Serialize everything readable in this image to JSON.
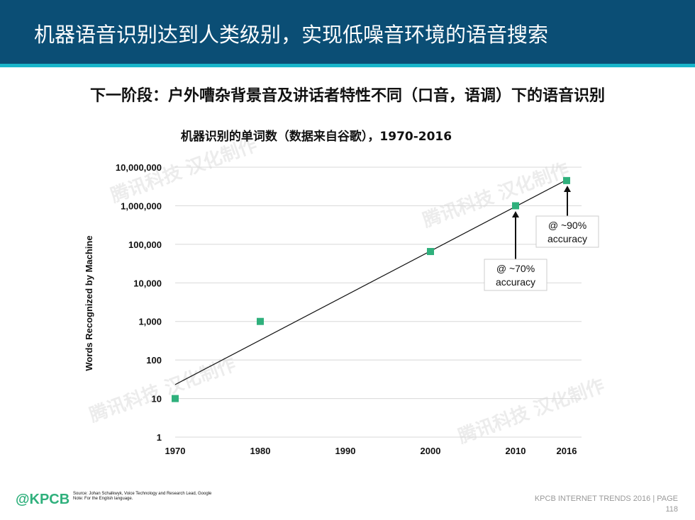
{
  "header": {
    "title": "机器语音识别达到人类级别，实现低噪音环境的语音搜索"
  },
  "subtitle": "下一阶段：户外嘈杂背景音及讲话者特性不同（口音，语调）下的语音识别",
  "watermark": "腾讯科技 汉化制作",
  "chart_data": {
    "type": "scatter",
    "title": "机器识别的单词数（数据来自谷歌），1970-2016",
    "xlabel": "",
    "ylabel": "Words Recognized by Machine",
    "yscale": "log",
    "ylim": [
      1,
      10000000
    ],
    "y_ticks": [
      {
        "v": 1,
        "label": "1"
      },
      {
        "v": 10,
        "label": "10"
      },
      {
        "v": 100,
        "label": "100"
      },
      {
        "v": 1000,
        "label": "1,000"
      },
      {
        "v": 10000,
        "label": "10,000"
      },
      {
        "v": 100000,
        "label": "100,000"
      },
      {
        "v": 1000000,
        "label": "1,000,000"
      },
      {
        "v": 10000000,
        "label": "10,000,000"
      }
    ],
    "x_ticks": [
      1970,
      1980,
      1990,
      2000,
      2010,
      2016
    ],
    "xlim": [
      1970,
      2016
    ],
    "points": [
      {
        "x": 1970,
        "y": 10
      },
      {
        "x": 1980,
        "y": 1000
      },
      {
        "x": 2000,
        "y": 65000
      },
      {
        "x": 2010,
        "y": 1000000
      },
      {
        "x": 2016,
        "y": 4500000
      }
    ],
    "trendline": [
      {
        "x": 1970,
        "y": 23
      },
      {
        "x": 2016,
        "y": 4700000
      }
    ],
    "point_color": "#2fb07c",
    "annotations": [
      {
        "x": 2010,
        "line1": "@ ~70%",
        "line2": "accuracy"
      },
      {
        "x": 2016,
        "line1": "@ ~90%",
        "line2": "accuracy"
      }
    ],
    "grid": true
  },
  "footer": {
    "logo": "@KPCB",
    "source": "Source: Johan Schalkwyk, Voice Technology and Research Lead, Google",
    "note": "Note: For the English language.",
    "trends": "KPCB INTERNET TRENDS 2016  |  PAGE",
    "page": "118"
  }
}
